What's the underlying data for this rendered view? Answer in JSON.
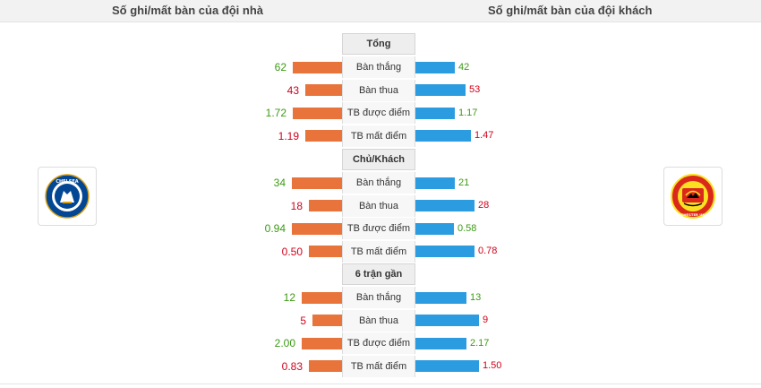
{
  "header": {
    "home_title": "Số ghi/mất bàn của đội nhà",
    "away_title": "Số ghi/mất bàn của đội khách"
  },
  "teams": {
    "home": {
      "crest_text": "CHELSEA",
      "colors": {
        "primary": "#034694",
        "accent": "#dba111"
      }
    },
    "away": {
      "crest_text": "MANCHESTER UNITED",
      "colors": {
        "primary": "#da291c",
        "accent": "#fbe122"
      }
    }
  },
  "colors": {
    "home_bar": "#e8743b",
    "away_bar": "#2c9ce0",
    "value_good": "#3c9a14",
    "value_bad": "#d0021b"
  },
  "chart_data": {
    "type": "bar",
    "orientation": "horizontal-diverging",
    "series_names": [
      "Home",
      "Away"
    ],
    "sections": [
      {
        "title": "Tổng",
        "rows": [
          {
            "label": "Bàn thắng",
            "home": 62,
            "home_text": "62",
            "away": 42,
            "away_text": "42",
            "home_color": "good",
            "away_color": "good",
            "home_scale": 55,
            "away_scale": 44
          },
          {
            "label": "Bàn thua",
            "home": 43,
            "home_text": "43",
            "away": 53,
            "away_text": "53",
            "home_color": "bad",
            "away_color": "bad",
            "home_scale": 41,
            "away_scale": 56
          },
          {
            "label": "TB được điểm",
            "home": 1.72,
            "home_text": "1.72",
            "away": 1.17,
            "away_text": "1.17",
            "home_color": "good",
            "away_color": "good",
            "home_scale": 55,
            "away_scale": 44
          },
          {
            "label": "TB mất điểm",
            "home": 1.19,
            "home_text": "1.19",
            "away": 1.47,
            "away_text": "1.47",
            "home_color": "bad",
            "away_color": "bad",
            "home_scale": 41,
            "away_scale": 62
          }
        ]
      },
      {
        "title": "Chủ/Khách",
        "rows": [
          {
            "label": "Bàn thắng",
            "home": 34,
            "home_text": "34",
            "away": 21,
            "away_text": "21",
            "home_color": "good",
            "away_color": "good",
            "home_scale": 56,
            "away_scale": 44
          },
          {
            "label": "Bàn thua",
            "home": 18,
            "home_text": "18",
            "away": 28,
            "away_text": "28",
            "home_color": "bad",
            "away_color": "bad",
            "home_scale": 37,
            "away_scale": 66
          },
          {
            "label": "TB được điểm",
            "home": 0.94,
            "home_text": "0.94",
            "away": 0.58,
            "away_text": "0.58",
            "home_color": "good",
            "away_color": "good",
            "home_scale": 56,
            "away_scale": 43
          },
          {
            "label": "TB mất điểm",
            "home": 0.5,
            "home_text": "0.50",
            "away": 0.78,
            "away_text": "0.78",
            "home_color": "bad",
            "away_color": "bad",
            "home_scale": 37,
            "away_scale": 66
          }
        ]
      },
      {
        "title": "6 trận gần",
        "rows": [
          {
            "label": "Bàn thắng",
            "home": 12,
            "home_text": "12",
            "away": 13,
            "away_text": "13",
            "home_color": "good",
            "away_color": "good",
            "home_scale": 45,
            "away_scale": 57
          },
          {
            "label": "Bàn thua",
            "home": 5,
            "home_text": "5",
            "away": 9,
            "away_text": "9",
            "home_color": "bad",
            "away_color": "bad",
            "home_scale": 33,
            "away_scale": 71
          },
          {
            "label": "TB được điểm",
            "home": 2.0,
            "home_text": "2.00",
            "away": 2.17,
            "away_text": "2.17",
            "home_color": "good",
            "away_color": "good",
            "home_scale": 45,
            "away_scale": 57
          },
          {
            "label": "TB mất điểm",
            "home": 0.83,
            "home_text": "0.83",
            "away": 1.5,
            "away_text": "1.50",
            "home_color": "bad",
            "away_color": "bad",
            "home_scale": 37,
            "away_scale": 71
          }
        ]
      }
    ]
  }
}
